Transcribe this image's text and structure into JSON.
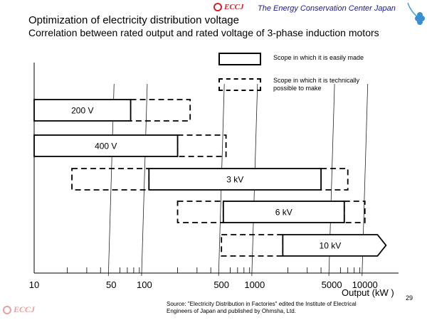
{
  "header": {
    "logo_text": "ECCJ",
    "org_name": "The Energy Conservation Center Japan",
    "title_line1": "Optimization of electricity distribution voltage",
    "title_line2": "Correlation between rated output and rated voltage of 3-phase induction motors"
  },
  "legend": {
    "solid_label": "Scope in which it is easily made",
    "dashed_label": "Scope in which it is technically possible to make"
  },
  "chart_data": {
    "type": "range-bar",
    "x_scale": "log",
    "x_unit_label": "Output (kW )",
    "x_ticks": [
      "10",
      "50",
      "100",
      "500",
      "1000",
      "5000",
      "10000"
    ],
    "bars": [
      {
        "label": "200 V",
        "easy": [
          10,
          75
        ],
        "possible": [
          75,
          260
        ]
      },
      {
        "label": "400 V",
        "easy": [
          10,
          200
        ],
        "possible": [
          200,
          550
        ]
      },
      {
        "label": "3 kV",
        "easy": [
          110,
          4000
        ],
        "possible_low": [
          22,
          110
        ],
        "possible_high": [
          4000,
          7000
        ]
      },
      {
        "label": "6 kV",
        "easy": [
          520,
          6500
        ],
        "possible_low": [
          200,
          520
        ],
        "possible_high": [
          6500,
          10000
        ]
      },
      {
        "label": "10 kV",
        "easy": [
          1800,
          13000
        ],
        "possible_low": [
          500,
          1800
        ]
      }
    ]
  },
  "footer": {
    "source": "Source: \"Electricity Distribution in Factories\" edited the Institute of Electrical Engineers of Japan and published by Ohmsha, Ltd.",
    "page_number": "29",
    "logo_text": "ECCJ"
  }
}
